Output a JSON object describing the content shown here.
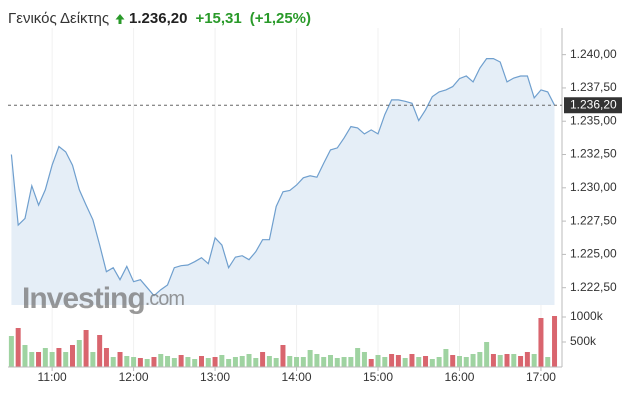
{
  "header": {
    "name": "Γενικός Δείκτης",
    "price": "1.236,20",
    "change": "+15,31",
    "change_pct": "(+1,25%)"
  },
  "watermark": {
    "brand": "Investing",
    "suffix": ".com"
  },
  "chart_data": {
    "type": "area",
    "x": [
      630,
      635,
      640,
      645,
      650,
      655,
      660,
      665,
      670,
      675,
      680,
      685,
      690,
      695,
      700,
      705,
      710,
      715,
      720,
      725,
      730,
      735,
      740,
      745,
      750,
      755,
      760,
      765,
      770,
      775,
      780,
      785,
      790,
      795,
      800,
      805,
      810,
      815,
      820,
      825,
      830,
      835,
      840,
      845,
      850,
      855,
      860,
      865,
      870,
      875,
      880,
      885,
      890,
      895,
      900,
      905,
      910,
      915,
      920,
      925,
      930,
      935,
      940,
      945,
      950,
      955,
      960,
      965,
      970,
      975,
      980,
      985,
      990,
      995,
      1000,
      1005,
      1010,
      1015,
      1020,
      1025,
      1030
    ],
    "series": [
      {
        "color": "#6f9fce",
        "fill": "#e5eef7",
        "values": [
          1232.5,
          1227.2,
          1227.7,
          1230.15,
          1228.7,
          1229.85,
          1231.7,
          1233.1,
          1232.7,
          1231.7,
          1229.85,
          1228.7,
          1227.6,
          1225.7,
          1223.7,
          1224.0,
          1223.1,
          1224.1,
          1222.95,
          1223.1,
          1222.5,
          1221.9,
          1222.35,
          1222.7,
          1224.0,
          1224.15,
          1224.2,
          1224.45,
          1224.75,
          1224.3,
          1226.25,
          1225.7,
          1224.0,
          1224.8,
          1224.9,
          1224.6,
          1225.2,
          1226.1,
          1226.1,
          1228.6,
          1229.7,
          1229.8,
          1230.2,
          1230.75,
          1230.9,
          1230.8,
          1231.85,
          1232.85,
          1233.0,
          1233.75,
          1234.6,
          1234.5,
          1234.05,
          1234.35,
          1234.05,
          1235.5,
          1236.6,
          1236.6,
          1236.5,
          1236.35,
          1235.05,
          1235.85,
          1236.85,
          1237.2,
          1237.35,
          1237.6,
          1238.2,
          1238.4,
          1237.95,
          1239.0,
          1239.7,
          1239.7,
          1239.45,
          1237.95,
          1238.25,
          1238.4,
          1238.4,
          1236.75,
          1237.35,
          1237.2,
          1236.2
        ]
      }
    ],
    "xlim": [
      627.5,
      1035.5
    ],
    "xticks": [
      {
        "value": 660,
        "label": "11:00"
      },
      {
        "value": 720,
        "label": "12:00"
      },
      {
        "value": 780,
        "label": "13:00"
      },
      {
        "value": 840,
        "label": "14:00"
      },
      {
        "value": 900,
        "label": "15:00"
      },
      {
        "value": 960,
        "label": "16:00"
      },
      {
        "value": 1020,
        "label": "17:00"
      }
    ],
    "ylim": [
      1221.2,
      1241.25
    ],
    "yticks": [
      {
        "value": 1222.5,
        "label": "1.222,50"
      },
      {
        "value": 1225,
        "label": "1.225,00"
      },
      {
        "value": 1227.5,
        "label": "1.227,50"
      },
      {
        "value": 1230,
        "label": "1.230,00"
      },
      {
        "value": 1232.5,
        "label": "1.232,50"
      },
      {
        "value": 1235,
        "label": "1.235,00"
      },
      {
        "value": 1237.5,
        "label": "1.237,50"
      },
      {
        "value": 1240,
        "label": "1.240,00"
      }
    ],
    "current": {
      "value": 1236.2,
      "label": "1.236,20"
    },
    "grid": true,
    "volume": {
      "values": [
        620000,
        780000,
        440000,
        300000,
        300000,
        380000,
        300000,
        380000,
        300000,
        440000,
        540000,
        740000,
        300000,
        640000,
        380000,
        200000,
        300000,
        220000,
        200000,
        180000,
        160000,
        200000,
        260000,
        220000,
        180000,
        240000,
        200000,
        160000,
        220000,
        180000,
        200000,
        240000,
        160000,
        200000,
        220000,
        260000,
        180000,
        300000,
        220000,
        180000,
        440000,
        220000,
        200000,
        200000,
        340000,
        260000,
        200000,
        240000,
        180000,
        200000,
        200000,
        380000,
        300000,
        160000,
        240000,
        200000,
        260000,
        240000,
        180000,
        260000,
        200000,
        220000,
        160000,
        200000,
        360000,
        240000,
        220000,
        200000,
        260000,
        300000,
        500000,
        260000,
        240000,
        260000,
        260000,
        220000,
        300000,
        260000,
        980000,
        200000,
        1020000
      ],
      "colors": [
        "#9fd3a1",
        "#d9656e",
        "#9fd3a1",
        "#9fd3a1",
        "#d9656e",
        "#9fd3a1",
        "#9fd3a1",
        "#d9656e",
        "#9fd3a1",
        "#d9656e",
        "#9fd3a1",
        "#d9656e",
        "#9fd3a1",
        "#d9656e",
        "#d9656e",
        "#9fd3a1",
        "#d9656e",
        "#9fd3a1",
        "#9fd3a1",
        "#d9656e",
        "#9fd3a1",
        "#d9656e",
        "#9fd3a1",
        "#9fd3a1",
        "#9fd3a1",
        "#d9656e",
        "#9fd3a1",
        "#9fd3a1",
        "#d9656e",
        "#9fd3a1",
        "#d9656e",
        "#9fd3a1",
        "#9fd3a1",
        "#9fd3a1",
        "#9fd3a1",
        "#9fd3a1",
        "#9fd3a1",
        "#d9656e",
        "#9fd3a1",
        "#9fd3a1",
        "#d9656e",
        "#9fd3a1",
        "#9fd3a1",
        "#9fd3a1",
        "#9fd3a1",
        "#9fd3a1",
        "#9fd3a1",
        "#9fd3a1",
        "#9fd3a1",
        "#9fd3a1",
        "#9fd3a1",
        "#9fd3a1",
        "#9fd3a1",
        "#d9656e",
        "#9fd3a1",
        "#9fd3a1",
        "#d9656e",
        "#d9656e",
        "#9fd3a1",
        "#d9656e",
        "#9fd3a1",
        "#d9656e",
        "#9fd3a1",
        "#9fd3a1",
        "#9fd3a1",
        "#d9656e",
        "#9fd3a1",
        "#9fd3a1",
        "#9fd3a1",
        "#9fd3a1",
        "#9fd3a1",
        "#d9656e",
        "#9fd3a1",
        "#d9656e",
        "#9fd3a1",
        "#d9656e",
        "#d9656e",
        "#9fd3a1",
        "#d9656e",
        "#9fd3a1",
        "#d9656e"
      ],
      "ylim": [
        0,
        1140000
      ],
      "yticks": [
        {
          "value": 500000,
          "label": "500k"
        },
        {
          "value": 1000000,
          "label": "1000k"
        }
      ]
    }
  }
}
